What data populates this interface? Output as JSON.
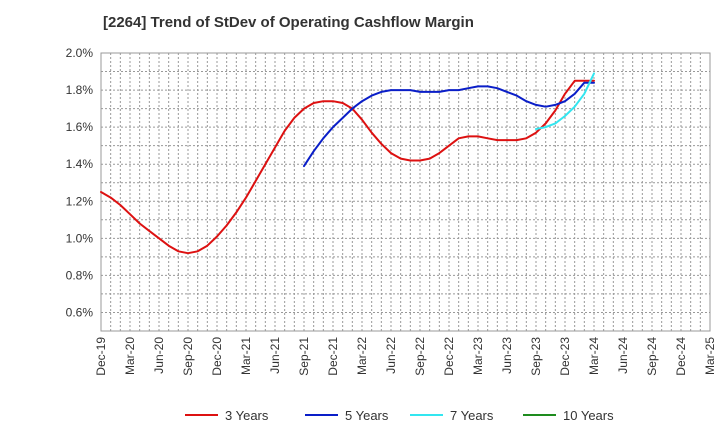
{
  "chart_data": {
    "type": "line",
    "title": "[2264]  Trend of StDev of Operating Cashflow Margin",
    "xlabel": "",
    "ylabel": "",
    "x_ticks": [
      "Dec-19",
      "Mar-20",
      "Jun-20",
      "Sep-20",
      "Dec-20",
      "Mar-21",
      "Jun-21",
      "Sep-21",
      "Dec-21",
      "Mar-22",
      "Jun-22",
      "Sep-22",
      "Dec-22",
      "Mar-23",
      "Jun-23",
      "Sep-23",
      "Dec-23",
      "Mar-24",
      "Jun-24",
      "Sep-24",
      "Dec-24",
      "Mar-25"
    ],
    "y_ticks": [
      "0.6%",
      "0.8%",
      "1.0%",
      "1.2%",
      "1.4%",
      "1.6%",
      "1.8%",
      "2.0%"
    ],
    "ylim": [
      0.5,
      2.0
    ],
    "y_unit": "%",
    "grid": true,
    "legend_position": "bottom",
    "series": [
      {
        "name": "3 Years",
        "color": "#dd1111",
        "x": [
          "2019-12",
          "2020-01",
          "2020-02",
          "2020-03",
          "2020-04",
          "2020-05",
          "2020-06",
          "2020-07",
          "2020-08",
          "2020-09",
          "2020-10",
          "2020-11",
          "2020-12",
          "2021-01",
          "2021-02",
          "2021-03",
          "2021-04",
          "2021-05",
          "2021-06",
          "2021-07",
          "2021-08",
          "2021-09",
          "2021-10",
          "2021-11",
          "2021-12",
          "2022-01",
          "2022-02",
          "2022-03",
          "2022-04",
          "2022-05",
          "2022-06",
          "2022-07",
          "2022-08",
          "2022-09",
          "2022-10",
          "2022-11",
          "2022-12",
          "2023-01",
          "2023-02",
          "2023-03",
          "2023-04",
          "2023-05",
          "2023-06",
          "2023-07",
          "2023-08",
          "2023-09",
          "2023-10",
          "2023-11",
          "2023-12",
          "2024-01",
          "2024-02",
          "2024-03"
        ],
        "values": [
          1.25,
          1.22,
          1.18,
          1.13,
          1.08,
          1.04,
          1.0,
          0.96,
          0.93,
          0.92,
          0.93,
          0.96,
          1.01,
          1.07,
          1.14,
          1.22,
          1.31,
          1.4,
          1.49,
          1.58,
          1.65,
          1.7,
          1.73,
          1.74,
          1.74,
          1.73,
          1.7,
          1.64,
          1.57,
          1.51,
          1.46,
          1.43,
          1.42,
          1.42,
          1.43,
          1.46,
          1.5,
          1.54,
          1.55,
          1.55,
          1.54,
          1.53,
          1.53,
          1.53,
          1.54,
          1.57,
          1.62,
          1.69,
          1.78,
          1.85,
          1.85,
          1.85
        ]
      },
      {
        "name": "5 Years",
        "color": "#0a1ec8",
        "x": [
          "2021-09",
          "2021-10",
          "2021-11",
          "2021-12",
          "2022-01",
          "2022-02",
          "2022-03",
          "2022-04",
          "2022-05",
          "2022-06",
          "2022-07",
          "2022-08",
          "2022-09",
          "2022-10",
          "2022-11",
          "2022-12",
          "2023-01",
          "2023-02",
          "2023-03",
          "2023-04",
          "2023-05",
          "2023-06",
          "2023-07",
          "2023-08",
          "2023-09",
          "2023-10",
          "2023-11",
          "2023-12",
          "2024-01",
          "2024-02",
          "2024-03"
        ],
        "values": [
          1.39,
          1.47,
          1.54,
          1.6,
          1.65,
          1.7,
          1.74,
          1.77,
          1.79,
          1.8,
          1.8,
          1.8,
          1.79,
          1.79,
          1.79,
          1.8,
          1.8,
          1.81,
          1.82,
          1.82,
          1.81,
          1.79,
          1.77,
          1.74,
          1.72,
          1.71,
          1.72,
          1.74,
          1.78,
          1.84,
          1.84
        ]
      },
      {
        "name": "7 Years",
        "color": "#33e6f0",
        "x": [
          "2023-09",
          "2023-10",
          "2023-11",
          "2023-12",
          "2024-01",
          "2024-02",
          "2024-03"
        ],
        "values": [
          1.59,
          1.6,
          1.62,
          1.66,
          1.71,
          1.78,
          1.89
        ]
      },
      {
        "name": "10 Years",
        "color": "#1e8c1e",
        "x": [],
        "values": []
      }
    ]
  }
}
